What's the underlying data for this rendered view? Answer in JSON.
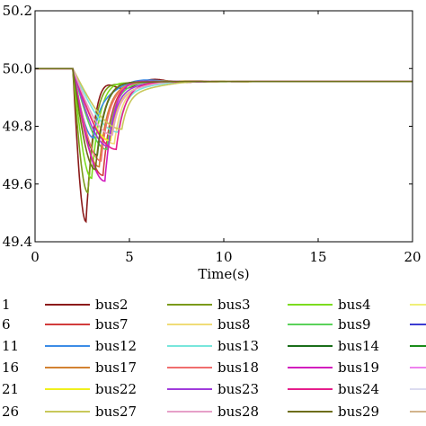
{
  "chart_data": {
    "type": "line",
    "title": "",
    "xlabel": "Time(s)",
    "ylabel": "",
    "xlim": [
      0,
      20
    ],
    "ylim": [
      49.4,
      50.2
    ],
    "xticks": [
      "0",
      "5",
      "10",
      "15",
      "20"
    ],
    "yticks": [
      "49.4",
      "49.6",
      "49.8",
      "50.0",
      "50.2"
    ],
    "grid": false,
    "legend_position": "bottom",
    "legend_partial_labels": [
      "1",
      "6",
      "11",
      "16",
      "21",
      "26"
    ],
    "series": [
      {
        "name": "bus2",
        "color": "#8b1a1a",
        "nadir_time": 2.7,
        "nadir": 49.47,
        "overshoot": 50.01
      },
      {
        "name": "bus3",
        "color": "#7a9a1a",
        "nadir_time": 2.8,
        "nadir": 49.57,
        "overshoot": 49.98
      },
      {
        "name": "bus4",
        "color": "#7cdc1e",
        "nadir_time": 3.0,
        "nadir": 49.62,
        "overshoot": 49.97
      },
      {
        "name": "bus7",
        "color": "#d23c3c",
        "nadir_time": 3.6,
        "nadir": 49.63,
        "overshoot": 49.96
      },
      {
        "name": "bus8",
        "color": "#f0dc78",
        "nadir_time": 4.2,
        "nadir": 49.74,
        "overshoot": 49.94
      },
      {
        "name": "bus9",
        "color": "#5ad25a",
        "nadir_time": 3.8,
        "nadir": 49.72,
        "overshoot": 49.95
      },
      {
        "name": "bus12",
        "color": "#3c8ce6",
        "nadir_time": 3.1,
        "nadir": 49.76,
        "overshoot": 49.93
      },
      {
        "name": "bus13",
        "color": "#78e6dc",
        "nadir_time": 4.4,
        "nadir": 49.78,
        "overshoot": 49.93
      },
      {
        "name": "bus14",
        "color": "#1a6e1a",
        "nadir_time": 3.3,
        "nadir": 49.7,
        "overshoot": 49.96
      },
      {
        "name": "bus17",
        "color": "#d28232",
        "nadir_time": 3.4,
        "nadir": 49.66,
        "overshoot": 49.95
      },
      {
        "name": "bus18",
        "color": "#f06e6e",
        "nadir_time": 3.5,
        "nadir": 49.68,
        "overshoot": 49.95
      },
      {
        "name": "bus19",
        "color": "#d21ebe",
        "nadir_time": 3.7,
        "nadir": 49.61,
        "overshoot": 49.97
      },
      {
        "name": "bus22",
        "color": "#f0f01e",
        "nadir_time": 4.0,
        "nadir": 49.75,
        "overshoot": 49.93
      },
      {
        "name": "bus23",
        "color": "#a03cdc",
        "nadir_time": 3.9,
        "nadir": 49.73,
        "overshoot": 49.94
      },
      {
        "name": "bus24",
        "color": "#e61e8c",
        "nadir_time": 4.3,
        "nadir": 49.72,
        "overshoot": 49.95
      },
      {
        "name": "bus27",
        "color": "#c8c85a",
        "nadir_time": 4.6,
        "nadir": 49.79,
        "overshoot": 49.92
      },
      {
        "name": "bus28",
        "color": "#e6a0c8",
        "nadir_time": 4.1,
        "nadir": 49.77,
        "overshoot": 49.93
      },
      {
        "name": "bus29",
        "color": "#6e6e1a",
        "nadir_time": 3.2,
        "nadir": 49.65,
        "overshoot": 49.96
      }
    ]
  }
}
